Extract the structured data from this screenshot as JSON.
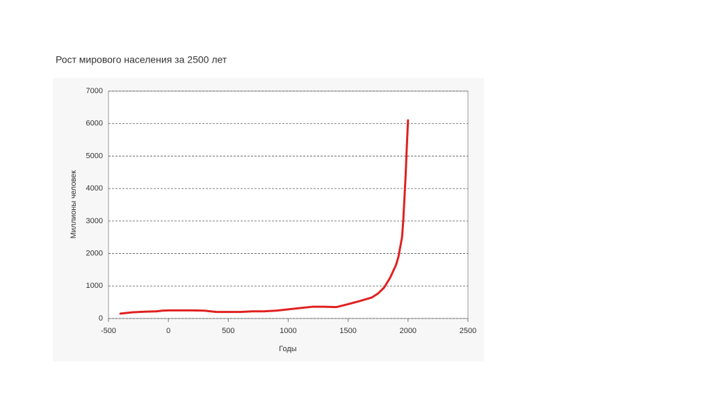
{
  "chart_data": {
    "type": "line",
    "title": "Рост мирового населения за 2500 лет",
    "x_label": "Годы",
    "y_label": "Миллионы человек",
    "series": [
      {
        "color": "#e02020",
        "x": [
          -400,
          -300,
          -200,
          -100,
          -50,
          0,
          200,
          300,
          400,
          500,
          600,
          700,
          800,
          900,
          1000,
          1100,
          1200,
          1300,
          1400,
          1500,
          1600,
          1700,
          1750,
          1800,
          1850,
          1900,
          1920,
          1950,
          1960,
          1970,
          1980,
          1990,
          2000
        ],
        "values": [
          150,
          190,
          210,
          220,
          240,
          250,
          250,
          240,
          200,
          200,
          200,
          220,
          220,
          240,
          280,
          320,
          360,
          360,
          350,
          440,
          540,
          650,
          770,
          950,
          1250,
          1650,
          1900,
          2500,
          3000,
          3700,
          4400,
          5300,
          6100
        ]
      }
    ],
    "xlim": [
      -500,
      2500
    ],
    "xticks": [
      -500,
      0,
      500,
      1000,
      1500,
      2000,
      2500
    ],
    "ylim": [
      0,
      7000
    ],
    "yticks": [
      0,
      1000,
      2000,
      3000,
      4000,
      5000,
      6000,
      7000
    ],
    "grid": true
  }
}
